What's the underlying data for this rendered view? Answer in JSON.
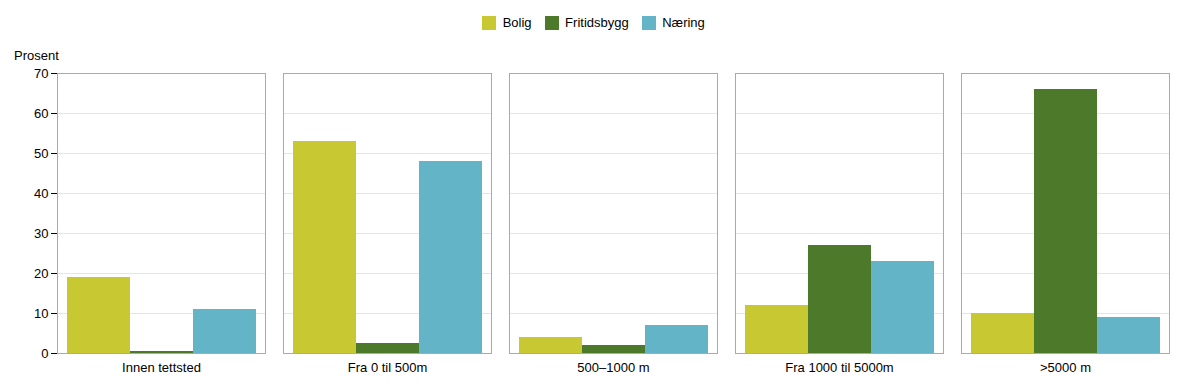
{
  "chart_data": {
    "type": "bar",
    "ylabel": "Prosent",
    "categories": [
      "Innen tettsted",
      "Fra 0 til 500m",
      "500–1000 m",
      "Fra 1000 til 5000m",
      ">5000 m"
    ],
    "series": [
      {
        "name": "Bolig",
        "color": "#c8c832",
        "values": [
          19,
          53,
          4,
          12,
          10
        ]
      },
      {
        "name": "Fritidsbygg",
        "color": "#4d7a2a",
        "values": [
          0.5,
          2.5,
          2,
          27,
          66
        ]
      },
      {
        "name": "Næring",
        "color": "#64b4c8",
        "values": [
          11,
          48,
          7,
          23,
          9
        ]
      }
    ],
    "ylim": [
      0,
      70
    ],
    "yticks": [
      0,
      10,
      20,
      30,
      40,
      50,
      60,
      70
    ],
    "grid": true,
    "legend": "top"
  }
}
